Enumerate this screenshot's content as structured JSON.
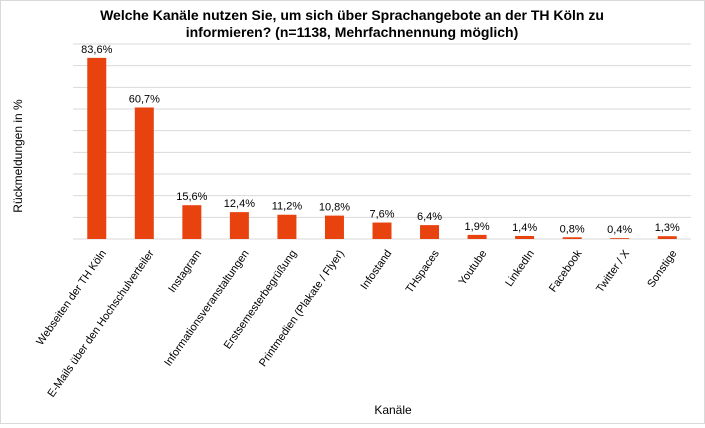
{
  "chart_data": {
    "type": "bar",
    "title_lines": [
      "Welche Kanäle nutzen Sie, um sich über Sprachangebote an der TH Köln zu",
      "informieren? (n=1138, Mehrfachnennung möglich)"
    ],
    "xlabel": "Kanäle",
    "ylabel": "Rückmeldungen in %",
    "categories": [
      "Webseiten der TH Köln",
      "E-Mails über den Hochschulverteiler",
      "Instagram",
      "Informationsveranstaltungen",
      "Erstsemesterbegrüßung",
      "Printmedien (Plakate / Flyer)",
      "Infostand",
      "THspaces",
      "Youtube",
      "LinkedIn",
      "Facebook",
      "Twitter / X",
      "Sonstige"
    ],
    "values": [
      83.6,
      60.7,
      15.6,
      12.4,
      11.2,
      10.8,
      7.6,
      6.4,
      1.9,
      1.4,
      0.8,
      0.4,
      1.3
    ],
    "value_labels": [
      "83,6%",
      "60,7%",
      "15,6%",
      "12,4%",
      "11,2%",
      "10,8%",
      "7,6%",
      "6,4%",
      "1,9%",
      "1,4%",
      "0,8%",
      "0,4%",
      "1,3%"
    ],
    "ylim": [
      0,
      90
    ],
    "grid": true,
    "bar_color": "#e8420e",
    "grid_color": "#d9d9d9"
  }
}
